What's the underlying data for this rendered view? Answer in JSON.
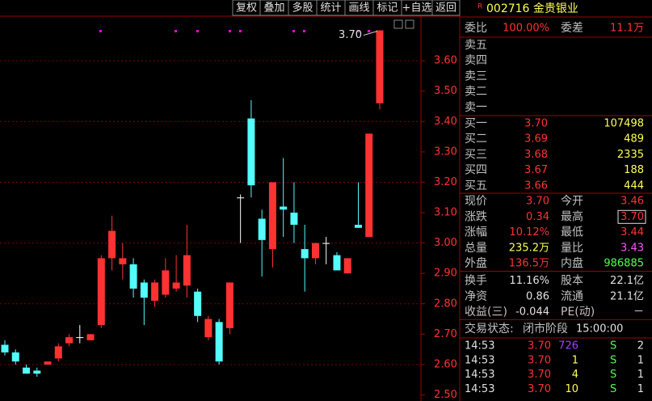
{
  "toolbar": [
    "复权",
    "叠加",
    "多股",
    "统计",
    "画线",
    "标记",
    "+自选",
    "返回"
  ],
  "chart_data": {
    "type": "candlestick",
    "annotation": "3.70",
    "open": [
      2.665,
      2.64,
      2.59,
      2.58,
      2.6,
      2.62,
      2.67,
      2.69,
      2.68,
      2.73,
      2.95,
      2.93,
      2.93,
      2.87,
      2.81,
      2.83,
      2.85,
      2.86,
      2.84,
      2.69,
      2.74,
      2.72,
      3.15,
      3.41,
      3.08,
      2.98,
      3.12,
      3.1,
      2.98,
      2.95,
      3.0,
      2.96,
      2.9,
      3.06,
      3.02,
      3.46
    ],
    "high": [
      2.68,
      2.65,
      2.6,
      2.59,
      2.61,
      2.67,
      2.7,
      2.73,
      2.7,
      2.96,
      3.09,
      3.0,
      2.95,
      2.88,
      2.88,
      2.95,
      2.96,
      3.06,
      2.85,
      2.76,
      2.75,
      2.87,
      3.16,
      3.47,
      3.11,
      3.2,
      3.28,
      3.2,
      3.06,
      3.0,
      3.02,
      2.97,
      2.95,
      3.2,
      3.36,
      3.7
    ],
    "low": [
      2.63,
      2.6,
      2.57,
      2.56,
      2.6,
      2.61,
      2.66,
      2.67,
      2.68,
      2.72,
      2.91,
      2.88,
      2.82,
      2.73,
      2.79,
      2.82,
      2.84,
      2.82,
      2.74,
      2.68,
      2.6,
      2.7,
      3.0,
      3.15,
      2.89,
      2.92,
      3.02,
      3.0,
      2.84,
      2.93,
      2.93,
      2.91,
      2.9,
      3.05,
      3.02,
      3.44
    ],
    "close": [
      2.64,
      2.61,
      2.57,
      2.57,
      2.61,
      2.66,
      2.69,
      2.69,
      2.7,
      2.95,
      3.04,
      2.95,
      2.85,
      2.82,
      2.87,
      2.91,
      2.87,
      2.96,
      2.76,
      2.75,
      2.61,
      2.87,
      3.15,
      3.19,
      3.01,
      3.2,
      3.11,
      3.06,
      2.95,
      3.0,
      3.0,
      2.91,
      2.95,
      3.05,
      3.36,
      3.7
    ],
    "up_color": "#ff3232",
    "down_color": "#54fcfc",
    "flat_color": "#ffffff",
    "ylim": [
      2.48,
      3.8
    ],
    "yticks": [
      {
        "value": 2.5,
        "label": "2.50"
      },
      {
        "value": 2.6,
        "label": "2.60"
      },
      {
        "value": 2.7,
        "label": "2.70"
      },
      {
        "value": 2.8,
        "label": "2.80"
      },
      {
        "value": 2.9,
        "label": "2.90"
      },
      {
        "value": 3.0,
        "label": "3.00"
      },
      {
        "value": 3.1,
        "label": "3.10"
      },
      {
        "value": 3.2,
        "label": "3.20"
      },
      {
        "value": 3.3,
        "label": "3.30"
      },
      {
        "value": 3.4,
        "label": "3.40"
      },
      {
        "value": 3.5,
        "label": "3.50"
      },
      {
        "value": 3.6,
        "label": "3.60"
      }
    ],
    "grid": true
  },
  "stock": {
    "flag": "R",
    "code_name": "002716 金贵银业"
  },
  "ratio": [
    {
      "label": "委比",
      "value": "100.00%",
      "color": "#ff3232"
    },
    {
      "label": "委差",
      "value": "11.1万",
      "color": "#ff3232"
    }
  ],
  "asks": [
    "卖五",
    "卖四",
    "卖三",
    "卖二",
    "卖一"
  ],
  "bids": [
    {
      "label": "买一",
      "price": "3.70",
      "volume": "107498"
    },
    {
      "label": "买二",
      "price": "3.69",
      "volume": "489"
    },
    {
      "label": "买三",
      "price": "3.68",
      "volume": "2335"
    },
    {
      "label": "买四",
      "price": "3.67",
      "volume": "188"
    },
    {
      "label": "买五",
      "price": "3.66",
      "volume": "444"
    }
  ],
  "stats": [
    [
      [
        {
          "label": "现价",
          "value": "3.70",
          "color": "#ff3232"
        },
        {
          "label": "今开",
          "value": "3.46",
          "color": "#ff3232"
        }
      ],
      [
        {
          "label": "涨跌",
          "value": "0.34",
          "color": "#ff3232"
        },
        {
          "label": "最高",
          "value": "3.70",
          "color": "#ff3232"
        }
      ],
      [
        {
          "label": "涨幅",
          "value": "10.12%",
          "color": "#ff3232"
        },
        {
          "label": "最低",
          "value": "3.44",
          "color": "#ff3232"
        }
      ],
      [
        {
          "label": "总量",
          "value": "235.2万",
          "color": "#ffff54"
        },
        {
          "label": "量比",
          "value": "3.43",
          "color": "#ff54ff"
        }
      ],
      [
        {
          "label": "外盘",
          "value": "136.5万",
          "color": "#ff3232"
        },
        {
          "label": "内盘",
          "value": "986885",
          "color": "#54fc54"
        }
      ]
    ],
    [
      [
        {
          "label": "换手",
          "value": "11.16%",
          "color": "#e0e0e0"
        },
        {
          "label": "股本",
          "value": "22.1亿",
          "color": "#e0e0e0"
        }
      ],
      [
        {
          "label": "净资",
          "value": "0.86",
          "color": "#e0e0e0"
        },
        {
          "label": "流通",
          "value": "21.1亿",
          "color": "#e0e0e0"
        }
      ],
      [
        {
          "label": "收益(三)",
          "value": "-0.044",
          "color": "#e0e0e0"
        },
        {
          "label": "PE(动)",
          "value": "－",
          "color": "#e0e0e0"
        }
      ]
    ]
  ],
  "status": {
    "label": "交易状态:",
    "state": "闭市阶段",
    "time": "15:00:00"
  },
  "trades": [
    {
      "time": "14:53",
      "price": "3.70",
      "volume": "726",
      "side": "S",
      "count": "2"
    },
    {
      "time": "14:53",
      "price": "3.70",
      "volume": "1",
      "side": "S",
      "count": "1"
    },
    {
      "time": "14:53",
      "price": "3.70",
      "volume": "4",
      "side": "S",
      "count": "1"
    },
    {
      "time": "14:53",
      "price": "3.70",
      "volume": "10",
      "side": "S",
      "count": "1"
    }
  ]
}
